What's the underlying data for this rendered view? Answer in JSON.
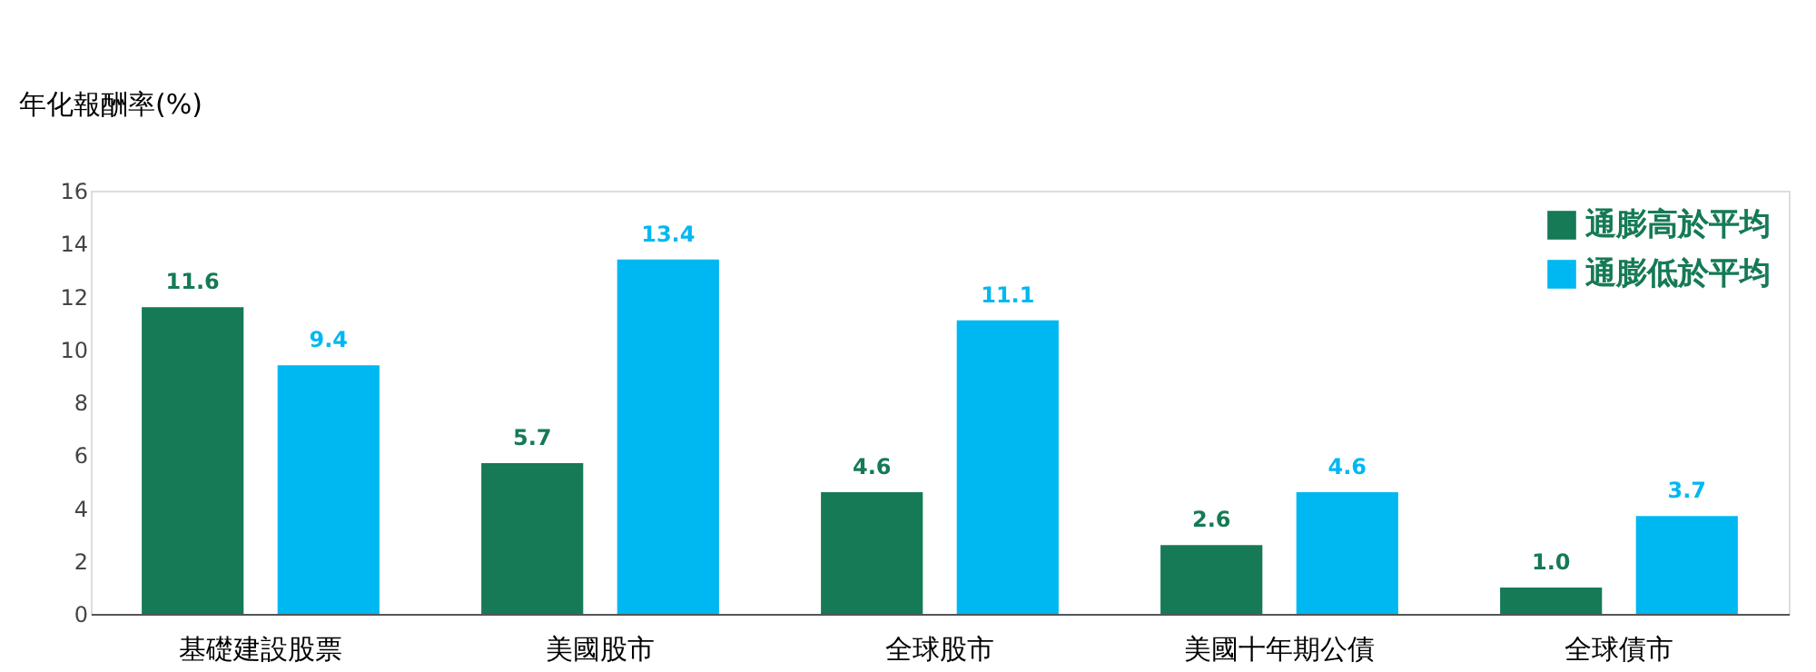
{
  "chart_data": {
    "type": "bar",
    "ylabel": "年化報酬率(%)",
    "categories": [
      "基礎建設股票",
      "美國股市",
      "全球股市",
      "美國十年期公債",
      "全球債市"
    ],
    "series": [
      {
        "name": "通膨高於平均",
        "color": "#157a55",
        "values": [
          11.6,
          5.7,
          4.6,
          2.6,
          1.0
        ],
        "value_labels": [
          "11.6",
          "5.7",
          "4.6",
          "2.6",
          "1.0"
        ]
      },
      {
        "name": "通膨低於平均",
        "color": "#00b8f1",
        "values": [
          9.4,
          13.4,
          11.1,
          4.6,
          3.7
        ],
        "value_labels": [
          "9.4",
          "13.4",
          "11.1",
          "4.6",
          "3.7"
        ]
      }
    ],
    "ylim": [
      0,
      16
    ],
    "yticks": [
      0,
      2,
      4,
      6,
      8,
      10,
      12,
      14,
      16
    ],
    "grid": false,
    "legend": "top right"
  }
}
